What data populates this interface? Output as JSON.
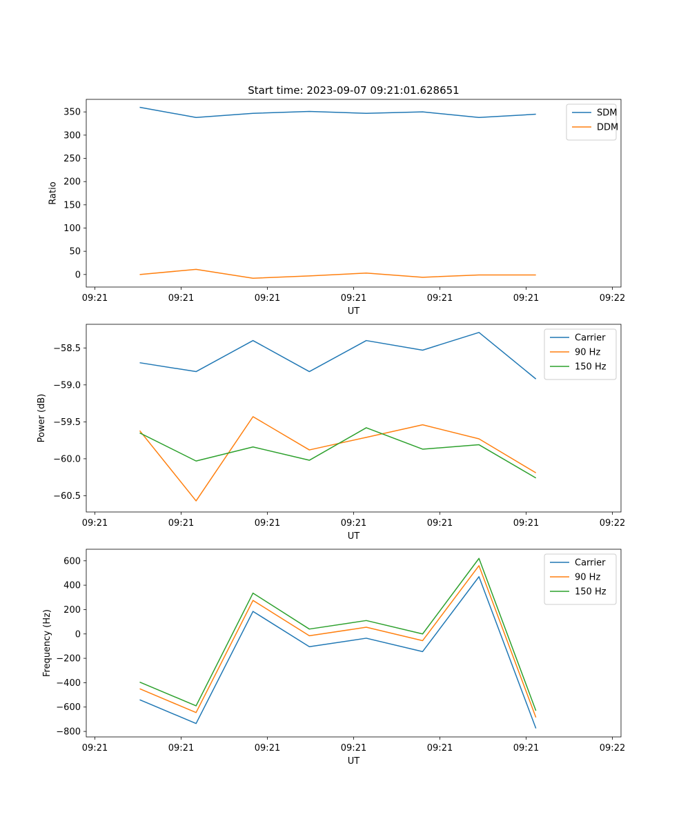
{
  "figure": {
    "title": "Start time: 2023-09-07 09:21:01.628651"
  },
  "chart_data": [
    {
      "type": "line",
      "ylabel": "Ratio",
      "xlabel": "UT",
      "xlim": [
        0,
        9.3
      ],
      "ylim": [
        -27,
        377
      ],
      "xticks": [
        0.15,
        1.65,
        3.15,
        4.65,
        6.15,
        7.65,
        9.15
      ],
      "xticklabels": [
        "09:21",
        "09:21",
        "09:21",
        "09:21",
        "09:21",
        "09:21",
        "09:22"
      ],
      "yticks": [
        0,
        50,
        100,
        150,
        200,
        250,
        300,
        350
      ],
      "yticklabels": [
        "0",
        "50",
        "100",
        "150",
        "200",
        "250",
        "300",
        "350"
      ],
      "legend": "upper right",
      "x": [
        0.93,
        1.91,
        2.9,
        3.88,
        4.87,
        5.85,
        6.83,
        7.82
      ],
      "series": [
        {
          "name": "SDM",
          "color": "#1f77b4",
          "values": [
            360,
            338,
            347,
            351,
            347,
            350,
            338,
            345
          ]
        },
        {
          "name": "DDM",
          "color": "#ff7f0e",
          "values": [
            0,
            11,
            -8,
            -3,
            3,
            -6,
            -1,
            -1
          ]
        }
      ]
    },
    {
      "type": "line",
      "ylabel": "Power (dB)",
      "xlabel": "UT",
      "xlim": [
        0,
        9.3
      ],
      "ylim": [
        -60.72,
        -58.18
      ],
      "xticks": [
        0.15,
        1.65,
        3.15,
        4.65,
        6.15,
        7.65,
        9.15
      ],
      "xticklabels": [
        "09:21",
        "09:21",
        "09:21",
        "09:21",
        "09:21",
        "09:21",
        "09:22"
      ],
      "yticks": [
        -58.5,
        -59.0,
        -59.5,
        -60.0,
        -60.5
      ],
      "yticklabels": [
        "−58.5",
        "−59.0",
        "−59.5",
        "−60.0",
        "−60.5"
      ],
      "legend": "upper right",
      "x": [
        0.93,
        1.91,
        2.9,
        3.88,
        4.87,
        5.85,
        6.83,
        7.82
      ],
      "series": [
        {
          "name": "Carrier",
          "color": "#1f77b4",
          "values": [
            -58.7,
            -58.82,
            -58.4,
            -58.82,
            -58.4,
            -58.53,
            -58.29,
            -58.92
          ]
        },
        {
          "name": "90 Hz",
          "color": "#ff7f0e",
          "values": [
            -59.62,
            -60.57,
            -59.43,
            -59.88,
            -59.71,
            -59.54,
            -59.73,
            -60.19
          ]
        },
        {
          "name": "150 Hz",
          "color": "#2ca02c",
          "values": [
            -59.65,
            -60.03,
            -59.84,
            -60.02,
            -59.58,
            -59.87,
            -59.81,
            -60.26
          ]
        }
      ]
    },
    {
      "type": "line",
      "ylabel": "Frequency (Hz)",
      "xlabel": "UT",
      "xlim": [
        0,
        9.3
      ],
      "ylim": [
        -845,
        695
      ],
      "xticks": [
        0.15,
        1.65,
        3.15,
        4.65,
        6.15,
        7.65,
        9.15
      ],
      "xticklabels": [
        "09:21",
        "09:21",
        "09:21",
        "09:21",
        "09:21",
        "09:21",
        "09:22"
      ],
      "yticks": [
        600,
        400,
        200,
        0,
        -200,
        -400,
        -600,
        -800
      ],
      "yticklabels": [
        "600",
        "400",
        "200",
        "0",
        "−200",
        "−400",
        "−600",
        "−800"
      ],
      "legend": "upper right",
      "x": [
        0.93,
        1.91,
        2.9,
        3.88,
        4.87,
        5.85,
        6.83,
        7.82
      ],
      "series": [
        {
          "name": "Carrier",
          "color": "#1f77b4",
          "values": [
            -540,
            -735,
            185,
            -105,
            -35,
            -145,
            470,
            -775
          ]
        },
        {
          "name": "90 Hz",
          "color": "#ff7f0e",
          "values": [
            -450,
            -645,
            275,
            -15,
            55,
            -55,
            560,
            -685
          ]
        },
        {
          "name": "150 Hz",
          "color": "#2ca02c",
          "values": [
            -395,
            -590,
            335,
            40,
            110,
            0,
            620,
            -630
          ]
        }
      ]
    }
  ]
}
